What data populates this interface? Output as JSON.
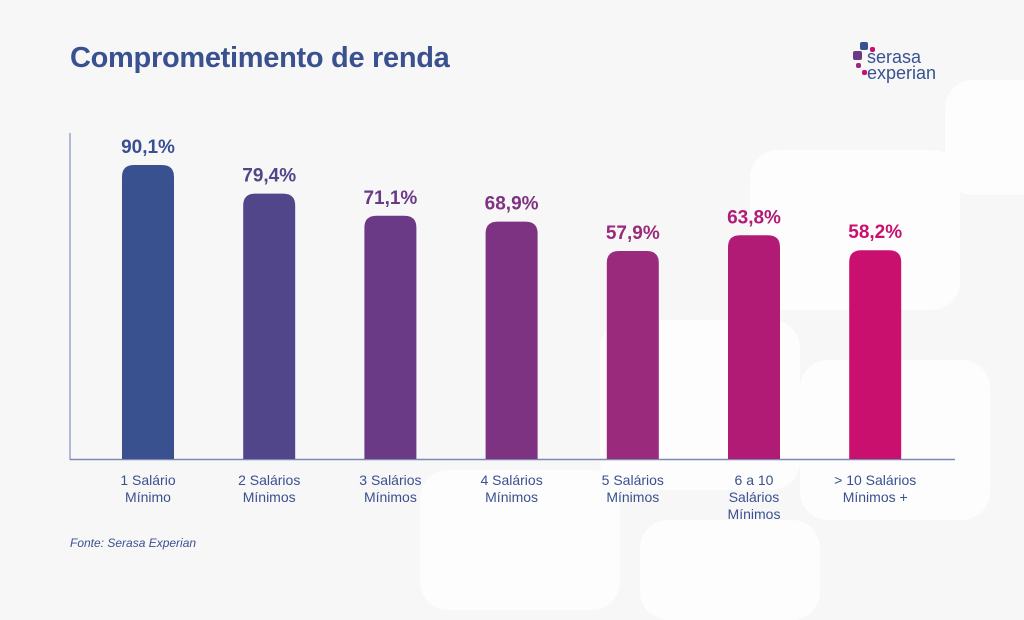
{
  "title": "Comprometimento de renda",
  "logo": {
    "line1": "serasa",
    "line2": "experian"
  },
  "source": "Fonte: Serasa Experian",
  "chart_data": {
    "type": "bar",
    "title": "Comprometimento de renda",
    "categories": [
      [
        "1 Salário",
        "Mínimo"
      ],
      [
        "2 Salários",
        "Mínimos"
      ],
      [
        "3 Salários",
        "Mínimos"
      ],
      [
        "4 Salários",
        "Mínimos"
      ],
      [
        "5 Salários",
        "Mínimos"
      ],
      [
        "6 a 10",
        "Salários",
        "Mínimos"
      ],
      [
        "> 10 Salários",
        "Mínimos +"
      ]
    ],
    "values": [
      90.1,
      79.4,
      71.1,
      68.9,
      57.9,
      63.8,
      58.2
    ],
    "labels": [
      "90,1%",
      "79,4%",
      "71,1%",
      "68,9%",
      "57,9%",
      "63,8%",
      "58,2%"
    ],
    "colors": [
      "#3a5190",
      "#51468a",
      "#6b3a86",
      "#7e3282",
      "#992a7c",
      "#b11b76",
      "#c9106f"
    ],
    "xlabel": "",
    "ylabel": "",
    "grid": false
  }
}
